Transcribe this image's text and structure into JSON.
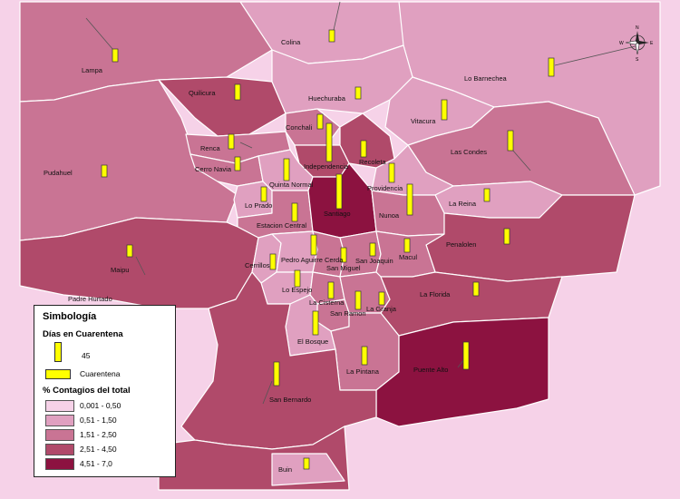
{
  "colors": {
    "c1": "#f6d2e8",
    "c2": "#e0a0c0",
    "c3": "#c97494",
    "c4": "#b04a6a",
    "c5": "#8c1240",
    "bar": "#ffff00",
    "border": "#ffffff"
  },
  "compass": {
    "n": "N",
    "s": "S",
    "e": "E",
    "w": "W"
  },
  "comunas": [
    {
      "name": "Colina"
    },
    {
      "name": "Lampa"
    },
    {
      "name": "Lo Barnechea"
    },
    {
      "name": "Quilicura"
    },
    {
      "name": "Huechuraba"
    },
    {
      "name": "Vitacura"
    },
    {
      "name": "Conchali"
    },
    {
      "name": "Renca"
    },
    {
      "name": "Cerro Navia"
    },
    {
      "name": "Independencia"
    },
    {
      "name": "Recoleta"
    },
    {
      "name": "Las Condes"
    },
    {
      "name": "Pudahuel"
    },
    {
      "name": "Quinta Normal"
    },
    {
      "name": "Providencia"
    },
    {
      "name": "Lo Prado"
    },
    {
      "name": "La Reina"
    },
    {
      "name": "Estacion Central"
    },
    {
      "name": "Santiago"
    },
    {
      "name": "Nunoa"
    },
    {
      "name": "Penalolen"
    },
    {
      "name": "Maipu"
    },
    {
      "name": "Cerrillos"
    },
    {
      "name": "Pedro Aguirre Cerda"
    },
    {
      "name": "San Joaquin"
    },
    {
      "name": "Macul"
    },
    {
      "name": "San Miguel"
    },
    {
      "name": "Padre Hurtado"
    },
    {
      "name": "Lo Espejo"
    },
    {
      "name": "La Florida"
    },
    {
      "name": "La Cisterna"
    },
    {
      "name": "La Granja"
    },
    {
      "name": "San Ramon"
    },
    {
      "name": "El Bosque"
    },
    {
      "name": "La Pintana"
    },
    {
      "name": "Puente Alto"
    },
    {
      "name": "San Bernardo"
    },
    {
      "name": "Buin"
    }
  ],
  "legend": {
    "title": "Simbología",
    "days_title": "Días en Cuarentena",
    "days_value": "45",
    "quarantine_label": "Cuarentena",
    "contagion_title": "% Contagios del total",
    "classes": [
      {
        "label": "0,001 - 0,50",
        "color": "#f6d2e8"
      },
      {
        "label": "0,51 - 1,50",
        "color": "#e0a0c0"
      },
      {
        "label": "1,51 - 2,50",
        "color": "#c97494"
      },
      {
        "label": "2,51 - 4,50",
        "color": "#b04a6a"
      },
      {
        "label": "4,51 - 7,0",
        "color": "#8c1240"
      }
    ]
  }
}
